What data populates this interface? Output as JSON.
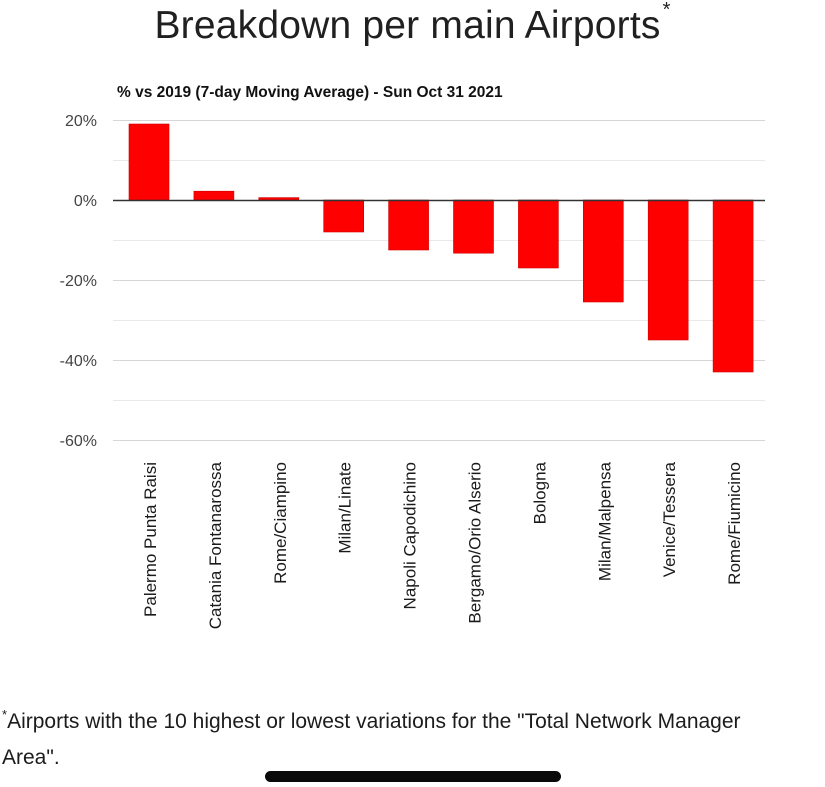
{
  "title": "Breakdown per main Airports",
  "title_marker": "*",
  "chart_data": {
    "type": "bar",
    "subtitle": "% vs 2019 (7-day Moving Average) - Sun Oct 31 2021",
    "xlabel": "",
    "ylabel": "",
    "categories": [
      "Palermo Punta Raisi",
      "Catania Fontanarossa",
      "Rome/Ciampino",
      "Milan/Linate",
      "Napoli Capodichino",
      "Bergamo/Orio Alserio",
      "Bologna",
      "Milan/Malpensa",
      "Venice/Tessera",
      "Rome/Fiumicino"
    ],
    "values": [
      19,
      2.2,
      0.6,
      -8,
      -12.5,
      -13.3,
      -17,
      -25.5,
      -35,
      -43
    ],
    "ylim": [
      -60,
      20
    ],
    "yticks": [
      20,
      0,
      -20,
      -40,
      -60
    ],
    "ytick_labels": [
      "20%",
      "0%",
      "-20%",
      "-40%",
      "-60%"
    ],
    "grid": true,
    "legend": "none",
    "bar_color": "#ff0000",
    "bar_edge_color": "#d00000"
  },
  "footnote": {
    "marker": "*",
    "line1": "Airports with the 10 highest or lowest variations for the \"Total Network Manager",
    "line2": "Area\"."
  }
}
